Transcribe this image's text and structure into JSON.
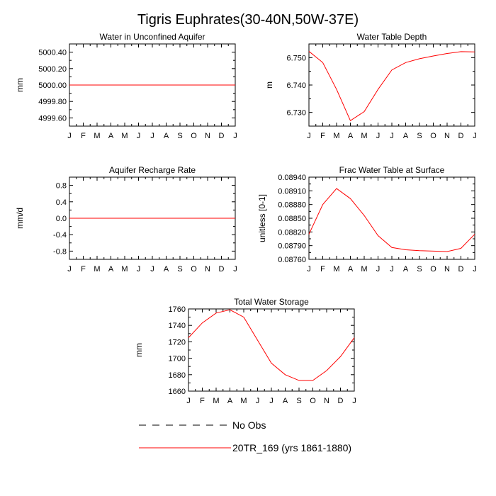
{
  "title": "Tigris Euphrates(30-40N,50W-37E)",
  "series_color": "#ff0000",
  "obs_color": "#000000",
  "legend": {
    "obs_label": "No Obs",
    "model_label": "20TR_169 (yrs 1861-1880)"
  },
  "chart_data": [
    {
      "type": "line",
      "title": "Water in Unconfined Aquifer",
      "ylabel": "mm",
      "x": [
        "J",
        "F",
        "M",
        "A",
        "M",
        "J",
        "J",
        "A",
        "S",
        "O",
        "N",
        "D",
        "J"
      ],
      "ylim": [
        4999.5,
        5000.5
      ],
      "yticks": [
        4999.6,
        4999.8,
        5000.0,
        5000.2,
        5000.4
      ],
      "ytick_labels": [
        "4999.60",
        "4999.80",
        "5000.00",
        "5000.20",
        "5000.40"
      ],
      "series": [
        {
          "values": [
            5000,
            5000,
            5000,
            5000,
            5000,
            5000,
            5000,
            5000,
            5000,
            5000,
            5000,
            5000,
            5000
          ]
        }
      ]
    },
    {
      "type": "line",
      "title": "Water Table Depth",
      "ylabel": "m",
      "x": [
        "J",
        "F",
        "M",
        "A",
        "M",
        "J",
        "J",
        "A",
        "S",
        "O",
        "N",
        "D",
        "J"
      ],
      "ylim": [
        6.725,
        6.755
      ],
      "yticks": [
        6.73,
        6.74,
        6.75
      ],
      "ytick_labels": [
        "6.730",
        "6.740",
        "6.750"
      ],
      "series": [
        {
          "values": [
            6.7523,
            6.7482,
            6.7384,
            6.727,
            6.7303,
            6.7384,
            6.7455,
            6.7482,
            6.7496,
            6.7506,
            6.7515,
            6.7522,
            6.7521
          ]
        }
      ]
    },
    {
      "type": "line",
      "title": "Aquifer Recharge Rate",
      "ylabel": "mm/d",
      "x": [
        "J",
        "F",
        "M",
        "A",
        "M",
        "J",
        "J",
        "A",
        "S",
        "O",
        "N",
        "D",
        "J"
      ],
      "ylim": [
        -1.0,
        1.0
      ],
      "yticks": [
        -0.8,
        -0.4,
        0.0,
        0.4,
        0.8
      ],
      "ytick_labels": [
        "-0.8",
        "-0.4",
        "0.0",
        "0.4",
        "0.8"
      ],
      "series": [
        {
          "values": [
            0,
            0,
            0,
            0,
            0,
            0,
            0,
            0,
            0,
            0,
            0,
            0,
            0
          ]
        }
      ]
    },
    {
      "type": "line",
      "title": "Frac Water Table at Surface",
      "ylabel": "unitless [0-1]",
      "x": [
        "J",
        "F",
        "M",
        "A",
        "M",
        "J",
        "J",
        "A",
        "S",
        "O",
        "N",
        "D",
        "J"
      ],
      "ylim": [
        0.0876,
        0.0894
      ],
      "yticks": [
        0.0876,
        0.0879,
        0.0882,
        0.0885,
        0.0888,
        0.0891,
        0.0894
      ],
      "ytick_labels": [
        "0.08760",
        "0.08790",
        "0.08820",
        "0.08850",
        "0.08880",
        "0.08910",
        "0.08940"
      ],
      "series": [
        {
          "values": [
            0.08815,
            0.0888,
            0.08915,
            0.08893,
            0.08856,
            0.08812,
            0.08786,
            0.08781,
            0.08779,
            0.08778,
            0.08777,
            0.08784,
            0.08815
          ]
        }
      ]
    },
    {
      "type": "line",
      "title": "Total Water Storage",
      "ylabel": "mm",
      "x": [
        "J",
        "F",
        "M",
        "A",
        "M",
        "J",
        "J",
        "A",
        "S",
        "O",
        "N",
        "D",
        "J"
      ],
      "ylim": [
        1660,
        1760
      ],
      "yticks": [
        1660,
        1680,
        1700,
        1720,
        1740,
        1760
      ],
      "ytick_labels": [
        "1660",
        "1680",
        "1700",
        "1720",
        "1740",
        "1760"
      ],
      "series": [
        {
          "values": [
            1725,
            1743,
            1755,
            1759,
            1750,
            1722,
            1694,
            1680,
            1673,
            1673,
            1685,
            1702,
            1725
          ]
        }
      ]
    }
  ]
}
